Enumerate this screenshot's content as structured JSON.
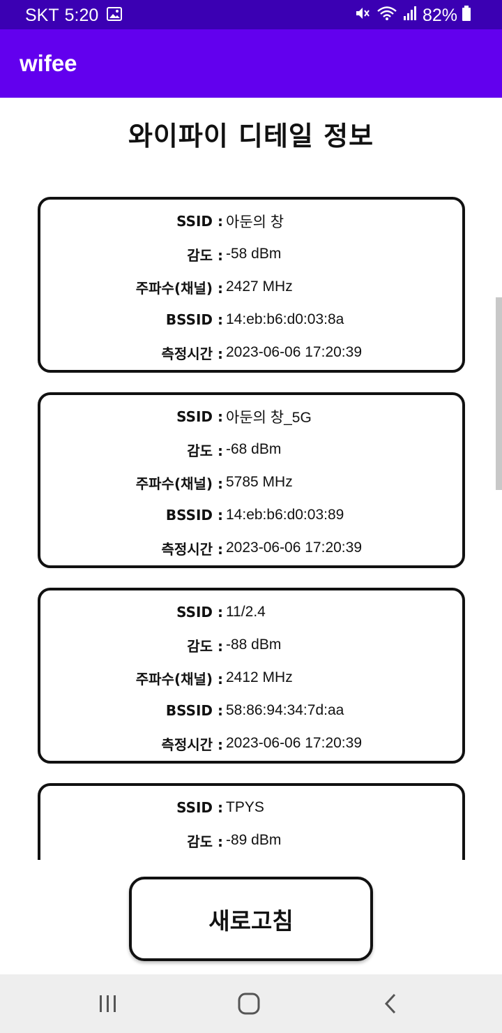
{
  "status_bar": {
    "carrier": "SKT",
    "time": "5:20",
    "battery": "82%",
    "icons": [
      "gallery-icon",
      "mute-icon",
      "wifi-icon",
      "signal-icon",
      "battery-icon"
    ],
    "background": "#3b00b3"
  },
  "app_bar": {
    "title": "wifee",
    "background": "#6200ee"
  },
  "page": {
    "title": "와이파이 디테일 정보"
  },
  "labels": {
    "ssid": "SSID :",
    "strength": "감도 :",
    "frequency": "주파수(채널) :",
    "bssid": "BSSID :",
    "time": "측정시간 :"
  },
  "networks": [
    {
      "ssid": "아둔의 창",
      "strength": "-58 dBm",
      "frequency": "2427 MHz",
      "bssid": "14:eb:b6:d0:03:8a",
      "time": "2023-06-06 17:20:39"
    },
    {
      "ssid": "아둔의 창_5G",
      "strength": "-68 dBm",
      "frequency": "5785 MHz",
      "bssid": "14:eb:b6:d0:03:89",
      "time": "2023-06-06 17:20:39"
    },
    {
      "ssid": "11/2.4",
      "strength": "-88 dBm",
      "frequency": "2412 MHz",
      "bssid": "58:86:94:34:7d:aa",
      "time": "2023-06-06 17:20:39"
    },
    {
      "ssid": "TPYS",
      "strength": "-89 dBm"
    }
  ],
  "refresh_button": {
    "label": "새로고침"
  },
  "nav_bar": {
    "icons": [
      "recents-icon",
      "home-icon",
      "back-icon"
    ]
  }
}
